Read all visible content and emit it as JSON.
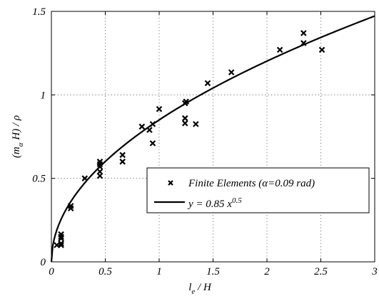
{
  "chart_data": {
    "type": "scatter",
    "xlabel_main": "l",
    "xlabel_sub": "e",
    "xlabel_rest": " / H",
    "ylabel_main": "(m",
    "ylabel_sub": "α",
    "ylabel_rest": " H) / ρ",
    "xlim": [
      0,
      3
    ],
    "ylim": [
      0,
      1.5
    ],
    "x_ticks": [
      0,
      0.5,
      1,
      1.5,
      2,
      2.5,
      3
    ],
    "x_tick_labels": [
      "0",
      "0.5",
      "1",
      "1.5",
      "2",
      "2.5",
      "3"
    ],
    "y_ticks": [
      0,
      0.5,
      1,
      1.5
    ],
    "y_tick_labels": [
      "0",
      "0.5",
      "1",
      "1.5"
    ],
    "grid": true,
    "legend_placement": "lower-right",
    "series": [
      {
        "name": "Finite Elements (α=0.09 rad)",
        "marker": "x",
        "color": "#000000",
        "points": [
          [
            0.05,
            0.1
          ],
          [
            0.09,
            0.1
          ],
          [
            0.09,
            0.11
          ],
          [
            0.09,
            0.14
          ],
          [
            0.09,
            0.15
          ],
          [
            0.09,
            0.165
          ],
          [
            0.18,
            0.32
          ],
          [
            0.18,
            0.335
          ],
          [
            0.31,
            0.5
          ],
          [
            0.45,
            0.515
          ],
          [
            0.45,
            0.54
          ],
          [
            0.45,
            0.57
          ],
          [
            0.45,
            0.585
          ],
          [
            0.45,
            0.6
          ],
          [
            0.66,
            0.6
          ],
          [
            0.66,
            0.64
          ],
          [
            0.84,
            0.81
          ],
          [
            0.91,
            0.79
          ],
          [
            0.94,
            0.71
          ],
          [
            0.94,
            0.825
          ],
          [
            1.0,
            0.915
          ],
          [
            1.24,
            0.83
          ],
          [
            1.24,
            0.86
          ],
          [
            1.24,
            0.95
          ],
          [
            1.25,
            0.96
          ],
          [
            1.34,
            0.825
          ],
          [
            1.45,
            1.07
          ],
          [
            1.67,
            1.135
          ],
          [
            2.12,
            1.27
          ],
          [
            2.34,
            1.31
          ],
          [
            2.34,
            1.37
          ],
          [
            2.51,
            1.27
          ]
        ]
      },
      {
        "name_prefix": "y = 0.85 x",
        "name_exponent": "0.5",
        "type": "line",
        "color": "#000000",
        "coefficient": 0.85,
        "exponent": 0.5,
        "x_range": [
          0,
          3
        ]
      }
    ]
  }
}
